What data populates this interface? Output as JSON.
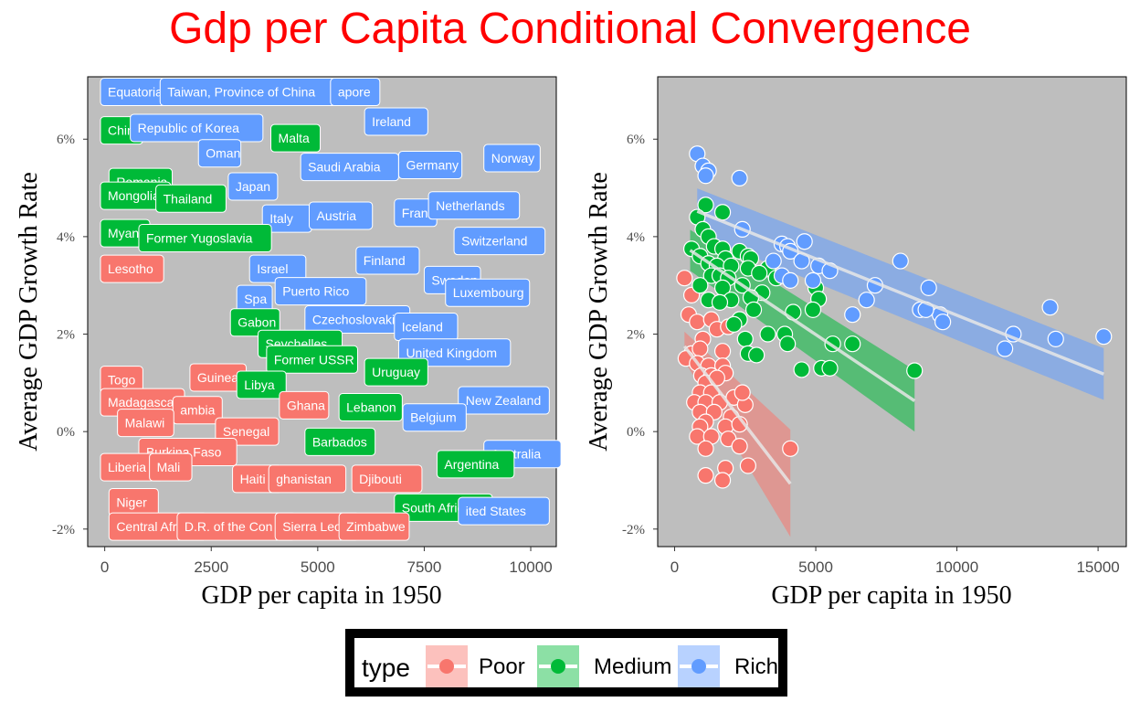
{
  "title": "Gdp per Capita Conditional Convergence",
  "colors": {
    "poor": "#F8766D",
    "medium": "#00BA38",
    "rich": "#619CFF",
    "panel": "#BEBEBE",
    "title": "#FF0000"
  },
  "legend": {
    "title": "type",
    "items": [
      {
        "label": "Poor",
        "type": "poor"
      },
      {
        "label": "Medium",
        "type": "medium"
      },
      {
        "label": "Rich",
        "type": "rich"
      }
    ]
  },
  "chart_data": [
    {
      "type": "scatter",
      "xlabel": "GDP per capita in 1950",
      "ylabel": "Average GDP Growth Rate",
      "xlim": [
        -400,
        10600
      ],
      "ylim": [
        -0.0236,
        0.0728
      ],
      "x_ticks": [
        0,
        2500,
        5000,
        7500,
        10000
      ],
      "x_tick_labels": [
        "0",
        "2500",
        "5000",
        "7500",
        "10000"
      ],
      "y_ticks": [
        -0.02,
        0,
        0.02,
        0.04,
        0.06
      ],
      "y_tick_labels": [
        "-2%",
        "0%",
        "2%",
        "4%",
        "6%"
      ],
      "labels": [
        {
          "text": "Equatorial",
          "x": -100,
          "y": 0.0697,
          "type": "rich"
        },
        {
          "text": "Taiwan, Province of China",
          "x": 1300,
          "y": 0.0697,
          "type": "rich"
        },
        {
          "text": "apore",
          "x": 5300,
          "y": 0.0697,
          "type": "rich"
        },
        {
          "text": "Ireland",
          "x": 6100,
          "y": 0.0636,
          "type": "rich"
        },
        {
          "text": "Chin",
          "x": -100,
          "y": 0.0618,
          "type": "medium"
        },
        {
          "text": "Republic of Korea",
          "x": 600,
          "y": 0.0623,
          "type": "rich"
        },
        {
          "text": "Malta",
          "x": 3900,
          "y": 0.0602,
          "type": "medium"
        },
        {
          "text": "Oman",
          "x": 2200,
          "y": 0.0571,
          "type": "rich"
        },
        {
          "text": "Saudi Arabia",
          "x": 4600,
          "y": 0.0543,
          "type": "rich"
        },
        {
          "text": "Germany",
          "x": 6900,
          "y": 0.0547,
          "type": "rich"
        },
        {
          "text": "Norway",
          "x": 8900,
          "y": 0.0561,
          "type": "rich"
        },
        {
          "text": "Romania",
          "x": 100,
          "y": 0.0512,
          "type": "medium"
        },
        {
          "text": "Mongolia",
          "x": -100,
          "y": 0.0484,
          "type": "medium"
        },
        {
          "text": "Thailand",
          "x": 1200,
          "y": 0.0478,
          "type": "medium"
        },
        {
          "text": "Japan",
          "x": 2900,
          "y": 0.0503,
          "type": "rich"
        },
        {
          "text": "Italy",
          "x": 3700,
          "y": 0.0437,
          "type": "rich"
        },
        {
          "text": "Austria",
          "x": 4800,
          "y": 0.0443,
          "type": "rich"
        },
        {
          "text": "Fran",
          "x": 6800,
          "y": 0.0449,
          "type": "rich"
        },
        {
          "text": "Netherlands",
          "x": 7600,
          "y": 0.0464,
          "type": "rich"
        },
        {
          "text": "Myann",
          "x": -100,
          "y": 0.0407,
          "type": "medium"
        },
        {
          "text": "Former Yugoslavia",
          "x": 800,
          "y": 0.0397,
          "type": "medium"
        },
        {
          "text": "Switzerland",
          "x": 8200,
          "y": 0.0391,
          "type": "rich"
        },
        {
          "text": "Lesotho",
          "x": -100,
          "y": 0.0334,
          "type": "poor"
        },
        {
          "text": "Finland",
          "x": 5900,
          "y": 0.0351,
          "type": "rich"
        },
        {
          "text": "Israel",
          "x": 3400,
          "y": 0.0334,
          "type": "rich"
        },
        {
          "text": "Sweden",
          "x": 7500,
          "y": 0.0311,
          "type": "rich"
        },
        {
          "text": "Luxembourg",
          "x": 8000,
          "y": 0.0285,
          "type": "rich"
        },
        {
          "text": "Spa",
          "x": 3100,
          "y": 0.0272,
          "type": "rich"
        },
        {
          "text": "Puerto Rico",
          "x": 4000,
          "y": 0.0288,
          "type": "rich"
        },
        {
          "text": "Gabon",
          "x": 2950,
          "y": 0.0224,
          "type": "medium"
        },
        {
          "text": "Czechoslovaki",
          "x": 4700,
          "y": 0.023,
          "type": "rich"
        },
        {
          "text": "Iceland",
          "x": 6800,
          "y": 0.0215,
          "type": "rich"
        },
        {
          "text": "Seychelles",
          "x": 3600,
          "y": 0.018,
          "type": "medium"
        },
        {
          "text": "United Kingdom",
          "x": 6900,
          "y": 0.0162,
          "type": "rich"
        },
        {
          "text": "Former USSR",
          "x": 3800,
          "y": 0.0148,
          "type": "medium"
        },
        {
          "text": "Uruguay",
          "x": 6100,
          "y": 0.0122,
          "type": "medium"
        },
        {
          "text": "Togo",
          "x": -100,
          "y": 0.0106,
          "type": "poor"
        },
        {
          "text": "Guinea",
          "x": 2000,
          "y": 0.0111,
          "type": "poor"
        },
        {
          "text": "Libya",
          "x": 3100,
          "y": 0.0096,
          "type": "medium"
        },
        {
          "text": "Madagascar",
          "x": -100,
          "y": 0.006,
          "type": "poor"
        },
        {
          "text": "ambia",
          "x": 1600,
          "y": 0.0044,
          "type": "poor"
        },
        {
          "text": "Ghana",
          "x": 4100,
          "y": 0.0054,
          "type": "poor"
        },
        {
          "text": "Lebanon",
          "x": 5500,
          "y": 0.005,
          "type": "medium"
        },
        {
          "text": "New Zealand",
          "x": 8300,
          "y": 0.0064,
          "type": "rich"
        },
        {
          "text": "Malawi",
          "x": 300,
          "y": 0.0018,
          "type": "poor"
        },
        {
          "text": "Senegal",
          "x": 2600,
          "y": -0.0,
          "type": "poor"
        },
        {
          "text": "Belgium",
          "x": 7000,
          "y": 0.0029,
          "type": "rich"
        },
        {
          "text": "Barbados",
          "x": 4700,
          "y": -0.0021,
          "type": "medium"
        },
        {
          "text": "Burkina Faso",
          "x": 800,
          "y": -0.0042,
          "type": "poor"
        },
        {
          "text": "Australia",
          "x": 8900,
          "y": -0.0046,
          "type": "rich"
        },
        {
          "text": "Liberia",
          "x": -100,
          "y": -0.0073,
          "type": "poor"
        },
        {
          "text": "Mali",
          "x": 1050,
          "y": -0.0073,
          "type": "poor"
        },
        {
          "text": "Haiti",
          "x": 3000,
          "y": -0.0097,
          "type": "poor"
        },
        {
          "text": "ghanistan",
          "x": 3850,
          "y": -0.0097,
          "type": "poor"
        },
        {
          "text": "Djibouti",
          "x": 5800,
          "y": -0.0097,
          "type": "poor"
        },
        {
          "text": "Argentina",
          "x": 7800,
          "y": -0.0067,
          "type": "medium"
        },
        {
          "text": "Niger",
          "x": 100,
          "y": -0.0145,
          "type": "poor"
        },
        {
          "text": "South Africa",
          "x": 6800,
          "y": -0.0156,
          "type": "medium"
        },
        {
          "text": "ited States",
          "x": 8300,
          "y": -0.0163,
          "type": "rich"
        },
        {
          "text": "Central Afri",
          "x": 100,
          "y": -0.0195,
          "type": "poor"
        },
        {
          "text": "D.R. of the Con",
          "x": 1700,
          "y": -0.0195,
          "type": "poor"
        },
        {
          "text": "Sierra Leo",
          "x": 4000,
          "y": -0.0195,
          "type": "poor"
        },
        {
          "text": "Zimbabwe",
          "x": 5500,
          "y": -0.0195,
          "type": "poor"
        }
      ]
    },
    {
      "type": "scatter",
      "xlabel": "GDP per capita in 1950",
      "ylabel": "Average GDP Growth Rate",
      "xlim": [
        -600,
        16000
      ],
      "ylim": [
        -0.0236,
        0.0728
      ],
      "x_ticks": [
        0,
        5000,
        10000,
        15000
      ],
      "x_tick_labels": [
        "0",
        "5000",
        "10000",
        "15000"
      ],
      "y_ticks": [
        -0.02,
        0,
        0.02,
        0.04,
        0.06
      ],
      "y_tick_labels": [
        "-2%",
        "0%",
        "2%",
        "4%",
        "6%"
      ],
      "series": [
        {
          "name": "Poor",
          "type": "poor",
          "points": [
            [
              350,
              0.0315
            ],
            [
              600,
              0.028
            ],
            [
              500,
              0.024
            ],
            [
              800,
              0.0225
            ],
            [
              1300,
              0.023
            ],
            [
              1500,
              0.021
            ],
            [
              1900,
              0.0215
            ],
            [
              1000,
              0.019
            ],
            [
              1700,
              0.0165
            ],
            [
              600,
              0.016
            ],
            [
              900,
              0.017
            ],
            [
              400,
              0.015
            ],
            [
              800,
              0.014
            ],
            [
              1200,
              0.0135
            ],
            [
              1700,
              0.0135
            ],
            [
              950,
              0.0115
            ],
            [
              1300,
              0.0115
            ],
            [
              1800,
              0.012
            ],
            [
              1100,
              0.01
            ],
            [
              1500,
              0.011
            ],
            [
              900,
              0.008
            ],
            [
              1300,
              0.008
            ],
            [
              700,
              0.006
            ],
            [
              1100,
              0.006
            ],
            [
              1600,
              0.006
            ],
            [
              2100,
              0.007
            ],
            [
              900,
              0.004
            ],
            [
              1400,
              0.004
            ],
            [
              2000,
              0.003
            ],
            [
              1100,
              0.002
            ],
            [
              1800,
              0.001
            ],
            [
              2300,
              0.0015
            ],
            [
              900,
              0.001
            ],
            [
              800,
              -0.001
            ],
            [
              1300,
              -0.001
            ],
            [
              1900,
              -0.0015
            ],
            [
              2300,
              -0.003
            ],
            [
              1100,
              -0.0035
            ],
            [
              4100,
              -0.0035
            ],
            [
              2600,
              -0.007
            ],
            [
              1800,
              -0.0075
            ],
            [
              1100,
              -0.009
            ],
            [
              1700,
              -0.01
            ],
            [
              2500,
              0.0055
            ],
            [
              2400,
              0.008
            ]
          ],
          "trend": {
            "x1": 350,
            "y1": 0.0175,
            "x2": 4100,
            "y2": -0.0107,
            "ci_start": [
              0.0145,
              0.0205
            ],
            "ci_end": [
              -0.0216,
              0.0004
            ]
          }
        },
        {
          "name": "Medium",
          "type": "medium",
          "points": [
            [
              1100,
              0.0465
            ],
            [
              800,
              0.044
            ],
            [
              1700,
              0.045
            ],
            [
              1000,
              0.0415
            ],
            [
              1200,
              0.04
            ],
            [
              1400,
              0.038
            ],
            [
              600,
              0.0375
            ],
            [
              1700,
              0.0375
            ],
            [
              900,
              0.036
            ],
            [
              2300,
              0.037
            ],
            [
              2600,
              0.036
            ],
            [
              1800,
              0.0355
            ],
            [
              2700,
              0.0355
            ],
            [
              1200,
              0.0345
            ],
            [
              1500,
              0.034
            ],
            [
              2000,
              0.034
            ],
            [
              2600,
              0.0335
            ],
            [
              3300,
              0.0335
            ],
            [
              3000,
              0.0325
            ],
            [
              1300,
              0.032
            ],
            [
              1600,
              0.032
            ],
            [
              1900,
              0.0315
            ],
            [
              3600,
              0.0315
            ],
            [
              900,
              0.03
            ],
            [
              1700,
              0.0295
            ],
            [
              2400,
              0.03
            ],
            [
              3100,
              0.0285
            ],
            [
              5000,
              0.0295
            ],
            [
              2700,
              0.0275
            ],
            [
              1200,
              0.027
            ],
            [
              2000,
              0.027
            ],
            [
              1600,
              0.0265
            ],
            [
              5100,
              0.0272
            ],
            [
              2800,
              0.025
            ],
            [
              4200,
              0.0245
            ],
            [
              4900,
              0.025
            ],
            [
              2300,
              0.023
            ],
            [
              2100,
              0.022
            ],
            [
              3900,
              0.02
            ],
            [
              3300,
              0.02
            ],
            [
              2500,
              0.019
            ],
            [
              5600,
              0.018
            ],
            [
              6300,
              0.018
            ],
            [
              4000,
              0.018
            ],
            [
              2600,
              0.016
            ],
            [
              2900,
              0.0157
            ],
            [
              5200,
              0.013
            ],
            [
              5500,
              0.013
            ],
            [
              4500,
              0.0127
            ],
            [
              8500,
              0.0125
            ]
          ],
          "trend": {
            "x1": 550,
            "y1": 0.0372,
            "x2": 8500,
            "y2": 0.0063,
            "ci_start": [
              0.033,
              0.0414
            ],
            "ci_end": [
              -0.0,
              0.0126
            ]
          }
        },
        {
          "name": "Rich",
          "type": "rich",
          "points": [
            [
              800,
              0.057
            ],
            [
              1000,
              0.0545
            ],
            [
              1200,
              0.0535
            ],
            [
              1100,
              0.0525
            ],
            [
              2300,
              0.052
            ],
            [
              2400,
              0.0415
            ],
            [
              3800,
              0.0385
            ],
            [
              4000,
              0.038
            ],
            [
              4600,
              0.039
            ],
            [
              4100,
              0.037
            ],
            [
              3500,
              0.035
            ],
            [
              4500,
              0.035
            ],
            [
              8000,
              0.035
            ],
            [
              5100,
              0.034
            ],
            [
              3800,
              0.032
            ],
            [
              4100,
              0.031
            ],
            [
              4900,
              0.031
            ],
            [
              5500,
              0.033
            ],
            [
              7100,
              0.03
            ],
            [
              9000,
              0.0295
            ],
            [
              6800,
              0.027
            ],
            [
              8700,
              0.025
            ],
            [
              9400,
              0.024
            ],
            [
              6300,
              0.024
            ],
            [
              13300,
              0.0255
            ],
            [
              8900,
              0.025
            ],
            [
              9500,
              0.0225
            ],
            [
              12000,
              0.02
            ],
            [
              15200,
              0.0195
            ],
            [
              13500,
              0.019
            ],
            [
              11700,
              0.017
            ]
          ],
          "trend": {
            "x1": 800,
            "y1": 0.0452,
            "x2": 15200,
            "y2": 0.0118,
            "ci_start": [
              0.0405,
              0.0499
            ],
            "ci_end": [
              0.0065,
              0.0171
            ]
          }
        }
      ]
    }
  ]
}
